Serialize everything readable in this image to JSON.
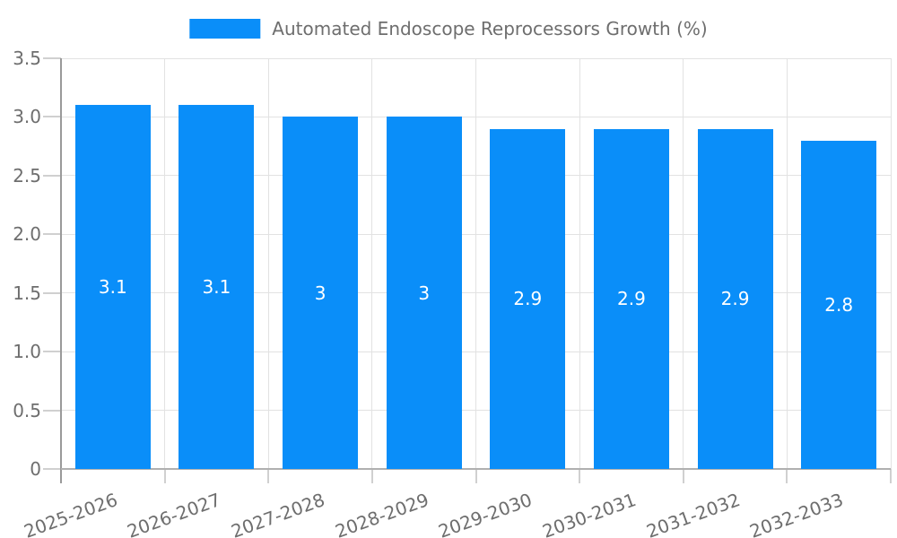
{
  "chart_data": {
    "type": "bar",
    "title": "Automated Endoscope Reprocessors Growth (%)",
    "categories": [
      "2025-2026",
      "2026-2027",
      "2027-2028",
      "2028-2029",
      "2029-2030",
      "2030-2031",
      "2031-2032",
      "2032-2033"
    ],
    "values": [
      3.1,
      3.1,
      3,
      3,
      2.9,
      2.9,
      2.9,
      2.8
    ],
    "bar_labels": [
      "3.1",
      "3.1",
      "3",
      "3",
      "2.9",
      "2.9",
      "2.9",
      "2.8"
    ],
    "xlabel": "",
    "ylabel": "",
    "ylim": [
      0,
      3.5
    ],
    "ytick_values": [
      0,
      0.5,
      1,
      1.5,
      2,
      2.5,
      3,
      3.5
    ],
    "ytick_labels": [
      "0",
      "0.5",
      "1.0",
      "1.5",
      "2.0",
      "2.5",
      "3.0",
      "3.5"
    ],
    "grid": "both",
    "legend_position": "top-center",
    "colors": {
      "bar": "#0A8EF9",
      "legend_text": "#6E6E6E",
      "axis_text": "#6E6E6E",
      "bar_label_text": "#FFFFFF",
      "gridline": "#E2E2E2",
      "tick": "#D0D0D0",
      "axis_line": "#9A9A9A",
      "baseline": "#B0B0B0",
      "background": "#FFFFFF"
    }
  }
}
